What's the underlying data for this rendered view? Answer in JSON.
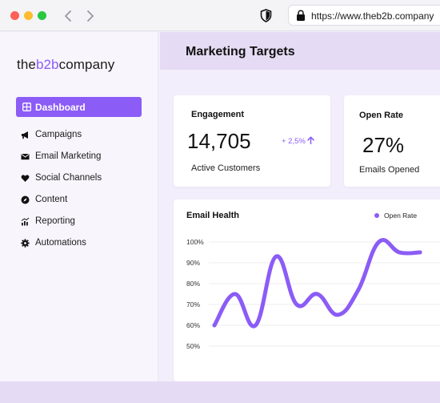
{
  "browser": {
    "url": "https://www.theb2b.company"
  },
  "logo": {
    "part1": "the",
    "part2": "b2b",
    "part3": "company"
  },
  "sidebar": {
    "active": {
      "label": "Dashboard",
      "icon": "dashboard-icon"
    },
    "items": [
      {
        "label": "Campaigns",
        "icon": "megaphone-icon"
      },
      {
        "label": "Email Marketing",
        "icon": "envelope-icon"
      },
      {
        "label": "Social Channels",
        "icon": "heart-icon"
      },
      {
        "label": "Content",
        "icon": "compass-icon"
      },
      {
        "label": "Reporting",
        "icon": "chart-icon"
      },
      {
        "label": "Automations",
        "icon": "gear-icon"
      }
    ]
  },
  "header": {
    "title": "Marketing Targets"
  },
  "cards": {
    "engagement": {
      "title": "Engagement",
      "value": "14,705",
      "change": "+ 2,5%",
      "label": "Active Customers"
    },
    "open_rate": {
      "title": "Open Rate",
      "value": "27%",
      "label": "Emails Opened"
    },
    "email_health": {
      "title": "Email Health",
      "legend": "Open Rate"
    }
  },
  "colors": {
    "accent": "#8b5cf6",
    "header": "#e6dbf4",
    "sidebar": "#f8f5fd"
  },
  "chart_data": {
    "type": "line",
    "title": "Email Health",
    "series": [
      {
        "name": "Open Rate",
        "x": [
          0,
          1,
          2,
          3,
          4,
          5,
          6,
          7,
          8,
          9,
          10
        ],
        "values": [
          60,
          75,
          60,
          93,
          70,
          75,
          65,
          77,
          100,
          95,
          95
        ]
      }
    ],
    "yticks": [
      100,
      90,
      80,
      70,
      60,
      50
    ],
    "ytick_labels": [
      "100%",
      "90%",
      "80%",
      "70%",
      "60%",
      "50%"
    ],
    "ylim": [
      50,
      100
    ],
    "grid": true,
    "legend": "top-right"
  }
}
